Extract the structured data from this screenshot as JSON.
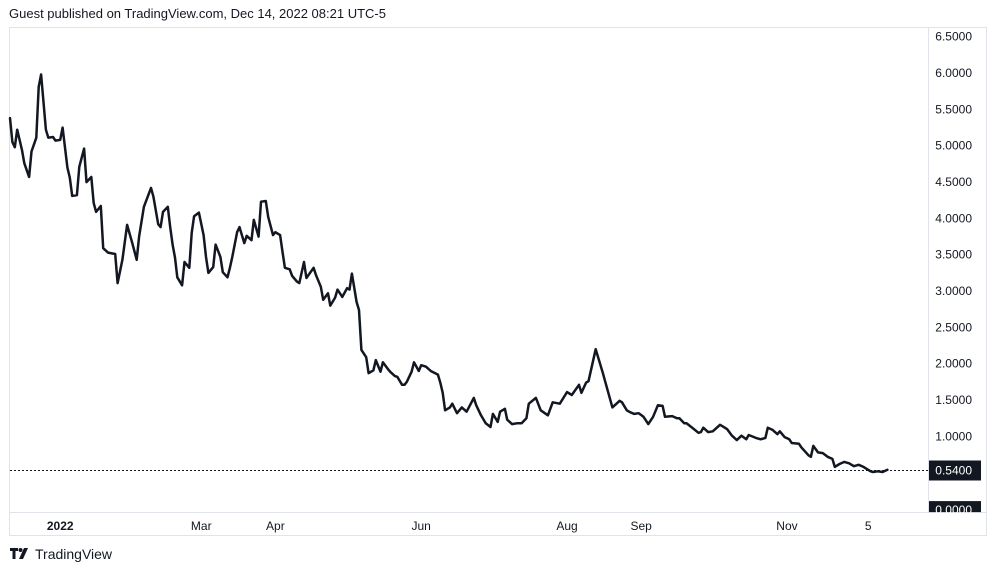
{
  "header": {
    "published": "Guest published on TradingView.com, Dec 14, 2022 08:21 UTC-5"
  },
  "footer": {
    "brand": "TradingView"
  },
  "colors": {
    "line": "#131722",
    "label_bg": "#131722",
    "label_text": "#ffffff",
    "grid_border": "#e0e3eb"
  },
  "chart_data": {
    "type": "line",
    "title": "",
    "xlabel": "",
    "ylabel": "",
    "x_unit": "days since 2022-01-01",
    "xlim": [
      -21,
      363
    ],
    "ylim": [
      -0.04,
      6.62
    ],
    "grid": false,
    "last_price": {
      "value": 0.54,
      "label": "0.5400"
    },
    "y_ticks": [
      {
        "value": 6.5,
        "label": "6.5000"
      },
      {
        "value": 6.0,
        "label": "6.0000"
      },
      {
        "value": 5.5,
        "label": "5.5000"
      },
      {
        "value": 5.0,
        "label": "5.0000"
      },
      {
        "value": 4.5,
        "label": "4.5000"
      },
      {
        "value": 4.0,
        "label": "4.0000"
      },
      {
        "value": 3.5,
        "label": "3.5000"
      },
      {
        "value": 3.0,
        "label": "3.0000"
      },
      {
        "value": 2.5,
        "label": "2.5000"
      },
      {
        "value": 2.0,
        "label": "2.0000"
      },
      {
        "value": 1.5,
        "label": "1.5000"
      },
      {
        "value": 1.0,
        "label": "1.0000"
      }
    ],
    "y_bottom_label": {
      "value": 0.0,
      "label": "0.0000"
    },
    "x_ticks": [
      {
        "value": 0,
        "label": "2022",
        "bold": true
      },
      {
        "value": 59,
        "label": "Mar"
      },
      {
        "value": 90,
        "label": "Apr"
      },
      {
        "value": 151,
        "label": "Jun"
      },
      {
        "value": 212,
        "label": "Aug"
      },
      {
        "value": 243,
        "label": "Sep"
      },
      {
        "value": 304,
        "label": "Nov"
      },
      {
        "value": 338,
        "label": "5"
      }
    ],
    "series": [
      {
        "name": "price",
        "points": [
          [
            -21,
            5.38
          ],
          [
            -20,
            5.05
          ],
          [
            -19,
            4.98
          ],
          [
            -18,
            5.22
          ],
          [
            -16,
            4.94
          ],
          [
            -15,
            4.76
          ],
          [
            -13,
            4.57
          ],
          [
            -12,
            4.92
          ],
          [
            -10,
            5.11
          ],
          [
            -9,
            5.81
          ],
          [
            -8,
            5.98
          ],
          [
            -6,
            5.22
          ],
          [
            -5,
            5.11
          ],
          [
            -3,
            5.12
          ],
          [
            -2,
            5.07
          ],
          [
            0,
            5.08
          ],
          [
            1,
            5.25
          ],
          [
            3,
            4.7
          ],
          [
            4,
            4.56
          ],
          [
            5,
            4.31
          ],
          [
            7,
            4.32
          ],
          [
            8,
            4.71
          ],
          [
            10,
            4.96
          ],
          [
            11,
            4.5
          ],
          [
            13,
            4.57
          ],
          [
            14,
            4.21
          ],
          [
            15,
            4.09
          ],
          [
            17,
            4.17
          ],
          [
            18,
            3.59
          ],
          [
            20,
            3.53
          ],
          [
            23,
            3.51
          ],
          [
            24,
            3.11
          ],
          [
            26,
            3.43
          ],
          [
            28,
            3.91
          ],
          [
            30,
            3.68
          ],
          [
            32,
            3.43
          ],
          [
            33,
            3.75
          ],
          [
            35,
            4.16
          ],
          [
            38,
            4.42
          ],
          [
            39,
            4.3
          ],
          [
            41,
            3.92
          ],
          [
            42,
            3.88
          ],
          [
            43,
            4.09
          ],
          [
            45,
            4.16
          ],
          [
            46,
            3.88
          ],
          [
            47,
            3.64
          ],
          [
            48,
            3.46
          ],
          [
            49,
            3.19
          ],
          [
            51,
            3.08
          ],
          [
            52,
            3.4
          ],
          [
            54,
            3.32
          ],
          [
            55,
            3.8
          ],
          [
            56,
            4.03
          ],
          [
            58,
            4.08
          ],
          [
            60,
            3.77
          ],
          [
            61,
            3.47
          ],
          [
            62,
            3.25
          ],
          [
            64,
            3.33
          ],
          [
            65,
            3.64
          ],
          [
            67,
            3.47
          ],
          [
            68,
            3.26
          ],
          [
            70,
            3.19
          ],
          [
            71,
            3.32
          ],
          [
            72,
            3.47
          ],
          [
            74,
            3.81
          ],
          [
            75,
            3.88
          ],
          [
            77,
            3.66
          ],
          [
            78,
            3.76
          ],
          [
            80,
            3.7
          ],
          [
            81,
            3.98
          ],
          [
            83,
            3.75
          ],
          [
            84,
            4.23
          ],
          [
            86,
            4.24
          ],
          [
            87,
            4.02
          ],
          [
            89,
            3.77
          ],
          [
            90,
            3.81
          ],
          [
            92,
            3.77
          ],
          [
            93,
            3.54
          ],
          [
            94,
            3.32
          ],
          [
            96,
            3.3
          ],
          [
            97,
            3.21
          ],
          [
            99,
            3.13
          ],
          [
            100,
            3.11
          ],
          [
            102,
            3.4
          ],
          [
            103,
            3.18
          ],
          [
            106,
            3.32
          ],
          [
            107,
            3.22
          ],
          [
            109,
            3.06
          ],
          [
            110,
            2.88
          ],
          [
            112,
            2.97
          ],
          [
            113,
            2.8
          ],
          [
            115,
            2.91
          ],
          [
            116,
            3.02
          ],
          [
            118,
            2.92
          ],
          [
            120,
            3.04
          ],
          [
            121,
            3.02
          ],
          [
            122,
            3.24
          ],
          [
            124,
            2.85
          ],
          [
            125,
            2.74
          ],
          [
            126,
            2.19
          ],
          [
            128,
            2.09
          ],
          [
            129,
            1.87
          ],
          [
            131,
            1.91
          ],
          [
            132,
            2.05
          ],
          [
            134,
            1.89
          ],
          [
            135,
            2.02
          ],
          [
            137,
            1.93
          ],
          [
            138,
            1.89
          ],
          [
            140,
            1.83
          ],
          [
            141,
            1.82
          ],
          [
            143,
            1.71
          ],
          [
            144,
            1.71
          ],
          [
            145,
            1.75
          ],
          [
            147,
            1.89
          ],
          [
            148,
            2.02
          ],
          [
            150,
            1.9
          ],
          [
            151,
            1.98
          ],
          [
            153,
            1.96
          ],
          [
            155,
            1.9
          ],
          [
            158,
            1.85
          ],
          [
            159,
            1.74
          ],
          [
            160,
            1.6
          ],
          [
            161,
            1.36
          ],
          [
            163,
            1.4
          ],
          [
            164,
            1.45
          ],
          [
            166,
            1.32
          ],
          [
            167,
            1.36
          ],
          [
            168,
            1.4
          ],
          [
            170,
            1.34
          ],
          [
            173,
            1.53
          ],
          [
            174,
            1.43
          ],
          [
            176,
            1.29
          ],
          [
            178,
            1.18
          ],
          [
            180,
            1.13
          ],
          [
            181,
            1.31
          ],
          [
            183,
            1.2
          ],
          [
            184,
            1.34
          ],
          [
            186,
            1.38
          ],
          [
            187,
            1.23
          ],
          [
            189,
            1.17
          ],
          [
            191,
            1.18
          ],
          [
            193,
            1.18
          ],
          [
            195,
            1.25
          ],
          [
            196,
            1.45
          ],
          [
            199,
            1.53
          ],
          [
            201,
            1.36
          ],
          [
            204,
            1.29
          ],
          [
            206,
            1.47
          ],
          [
            209,
            1.45
          ],
          [
            212,
            1.61
          ],
          [
            214,
            1.57
          ],
          [
            217,
            1.71
          ],
          [
            218,
            1.6
          ],
          [
            220,
            1.74
          ],
          [
            221,
            1.76
          ],
          [
            224,
            2.2
          ],
          [
            227,
            1.87
          ],
          [
            228,
            1.75
          ],
          [
            231,
            1.4
          ],
          [
            234,
            1.49
          ],
          [
            235,
            1.47
          ],
          [
            237,
            1.36
          ],
          [
            238,
            1.34
          ],
          [
            240,
            1.31
          ],
          [
            242,
            1.32
          ],
          [
            244,
            1.27
          ],
          [
            246,
            1.17
          ],
          [
            248,
            1.27
          ],
          [
            250,
            1.43
          ],
          [
            252,
            1.42
          ],
          [
            253,
            1.27
          ],
          [
            256,
            1.28
          ],
          [
            258,
            1.25
          ],
          [
            259,
            1.25
          ],
          [
            261,
            1.18
          ],
          [
            262,
            1.18
          ],
          [
            264,
            1.13
          ],
          [
            267,
            1.05
          ],
          [
            268,
            1.06
          ],
          [
            269,
            1.12
          ],
          [
            271,
            1.06
          ],
          [
            273,
            1.07
          ],
          [
            276,
            1.16
          ],
          [
            277,
            1.14
          ],
          [
            279,
            1.1
          ],
          [
            281,
            1.01
          ],
          [
            283,
            0.95
          ],
          [
            285,
            1.01
          ],
          [
            287,
            0.96
          ],
          [
            288,
            1.02
          ],
          [
            291,
            0.98
          ],
          [
            293,
            0.96
          ],
          [
            295,
            0.98
          ],
          [
            296,
            1.12
          ],
          [
            298,
            1.09
          ],
          [
            300,
            1.03
          ],
          [
            301,
            1.07
          ],
          [
            303,
            0.99
          ],
          [
            305,
            0.96
          ],
          [
            306,
            0.91
          ],
          [
            309,
            0.9
          ],
          [
            310,
            0.85
          ],
          [
            313,
            0.74
          ],
          [
            314,
            0.72
          ],
          [
            315,
            0.87
          ],
          [
            317,
            0.78
          ],
          [
            319,
            0.77
          ],
          [
            321,
            0.72
          ],
          [
            323,
            0.69
          ],
          [
            324,
            0.58
          ],
          [
            326,
            0.62
          ],
          [
            328,
            0.65
          ],
          [
            330,
            0.63
          ],
          [
            332,
            0.59
          ],
          [
            334,
            0.61
          ],
          [
            336,
            0.58
          ],
          [
            339,
            0.52
          ],
          [
            340,
            0.51
          ],
          [
            342,
            0.52
          ],
          [
            344,
            0.51
          ],
          [
            346,
            0.54
          ]
        ]
      }
    ]
  }
}
